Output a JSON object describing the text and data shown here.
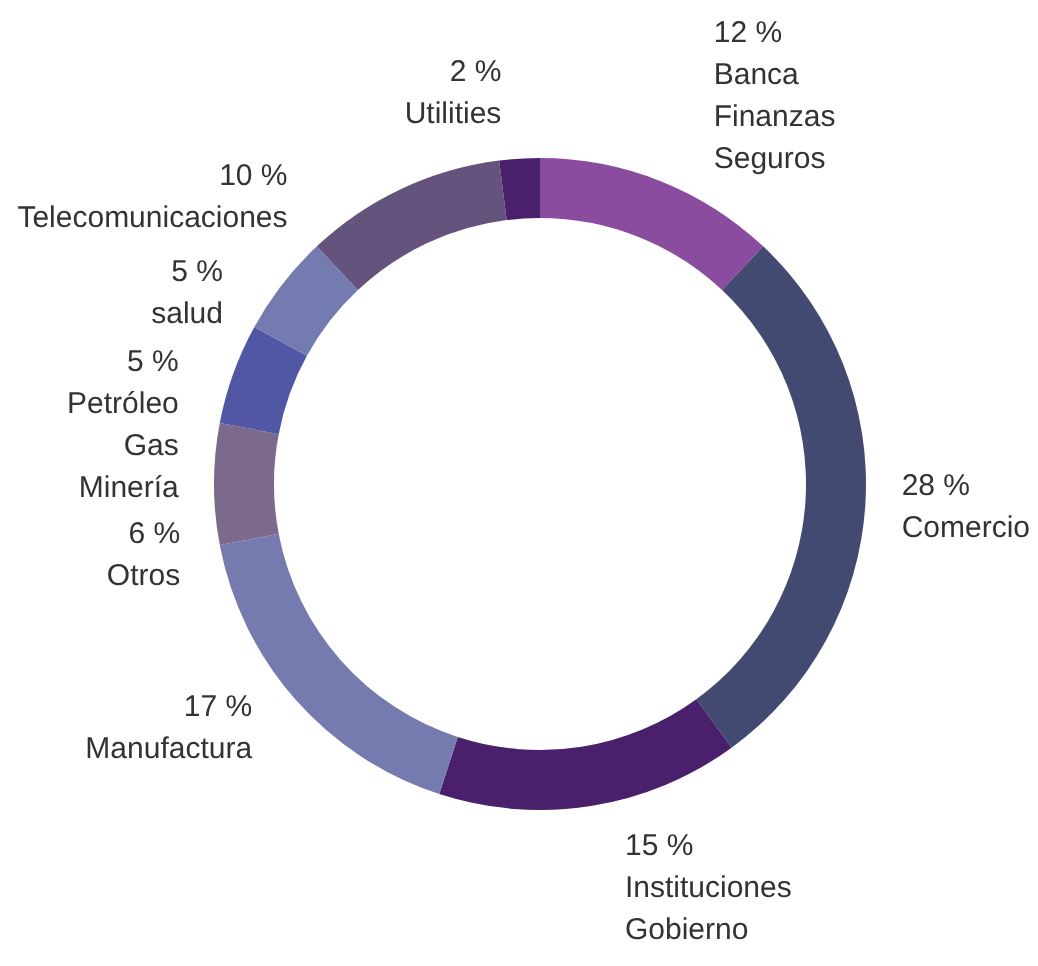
{
  "chart_data": {
    "type": "donut",
    "categories": [
      "Banca Finanzas Seguros",
      "Comercio",
      "Instituciones Gobierno",
      "Manufactura",
      "Otros",
      "Petróleo Gas Minería",
      "salud",
      "Telecomunicaciones",
      "Utilities"
    ],
    "values": [
      12,
      28,
      15,
      17,
      6,
      5,
      5,
      10,
      2
    ],
    "value_labels": [
      "12 %",
      "28 %",
      "15 %",
      "17 %",
      "6 %",
      "5 %",
      "5 %",
      "10 %",
      "2 %"
    ],
    "colors": [
      "#8a4c9e",
      "#434a72",
      "#4a1f6b",
      "#757bae",
      "#7b6a8c",
      "#5157a5",
      "#737bb0",
      "#64547d",
      "#4a1f6b"
    ]
  }
}
